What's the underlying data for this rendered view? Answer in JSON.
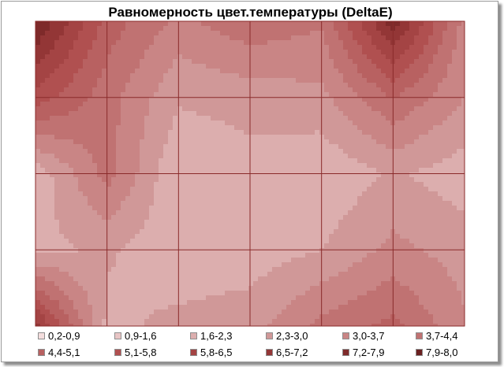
{
  "chart_data": {
    "type": "heatmap",
    "subtype": "contour",
    "title": "Равномерность цвет.температуры (DeltaE)",
    "xlabel": "",
    "ylabel": "",
    "grid": true,
    "grid_divisions": {
      "columns": 6,
      "rows": 4
    },
    "legend_placement": "bottom",
    "levels": [
      {
        "label": "0,2-0,9",
        "color": "#f4dede"
      },
      {
        "label": "0,9-1,6",
        "color": "#e8c5c5"
      },
      {
        "label": "1,6-2,3",
        "color": "#dcaeae"
      },
      {
        "label": "2,3-3,0",
        "color": "#d09898"
      },
      {
        "label": "3,0-3,7",
        "color": "#c98585"
      },
      {
        "label": "3,7-4,4",
        "color": "#c07272"
      },
      {
        "label": "4,4-5,1",
        "color": "#b86161"
      },
      {
        "label": "5,1-5,8",
        "color": "#b05050"
      },
      {
        "label": "5,8-6,5",
        "color": "#a44444"
      },
      {
        "label": "6,5-7,2",
        "color": "#933636"
      },
      {
        "label": "7,2-7,9",
        "color": "#7e2a2a"
      },
      {
        "label": "7,9-8,0",
        "color": "#6a2020"
      }
    ],
    "grid_values": [
      [
        8.0,
        4.8,
        3.5,
        4.2,
        3.8,
        7.6,
        3.4
      ],
      [
        5.5,
        4.0,
        2.4,
        2.6,
        2.8,
        4.4,
        3.0
      ],
      [
        1.8,
        4.0,
        1.6,
        2.0,
        1.7,
        2.4,
        1.9
      ],
      [
        2.1,
        2.4,
        1.8,
        1.9,
        2.3,
        3.2,
        2.7
      ],
      [
        6.8,
        2.1,
        2.5,
        2.7,
        3.9,
        4.6,
        3.1
      ]
    ]
  }
}
